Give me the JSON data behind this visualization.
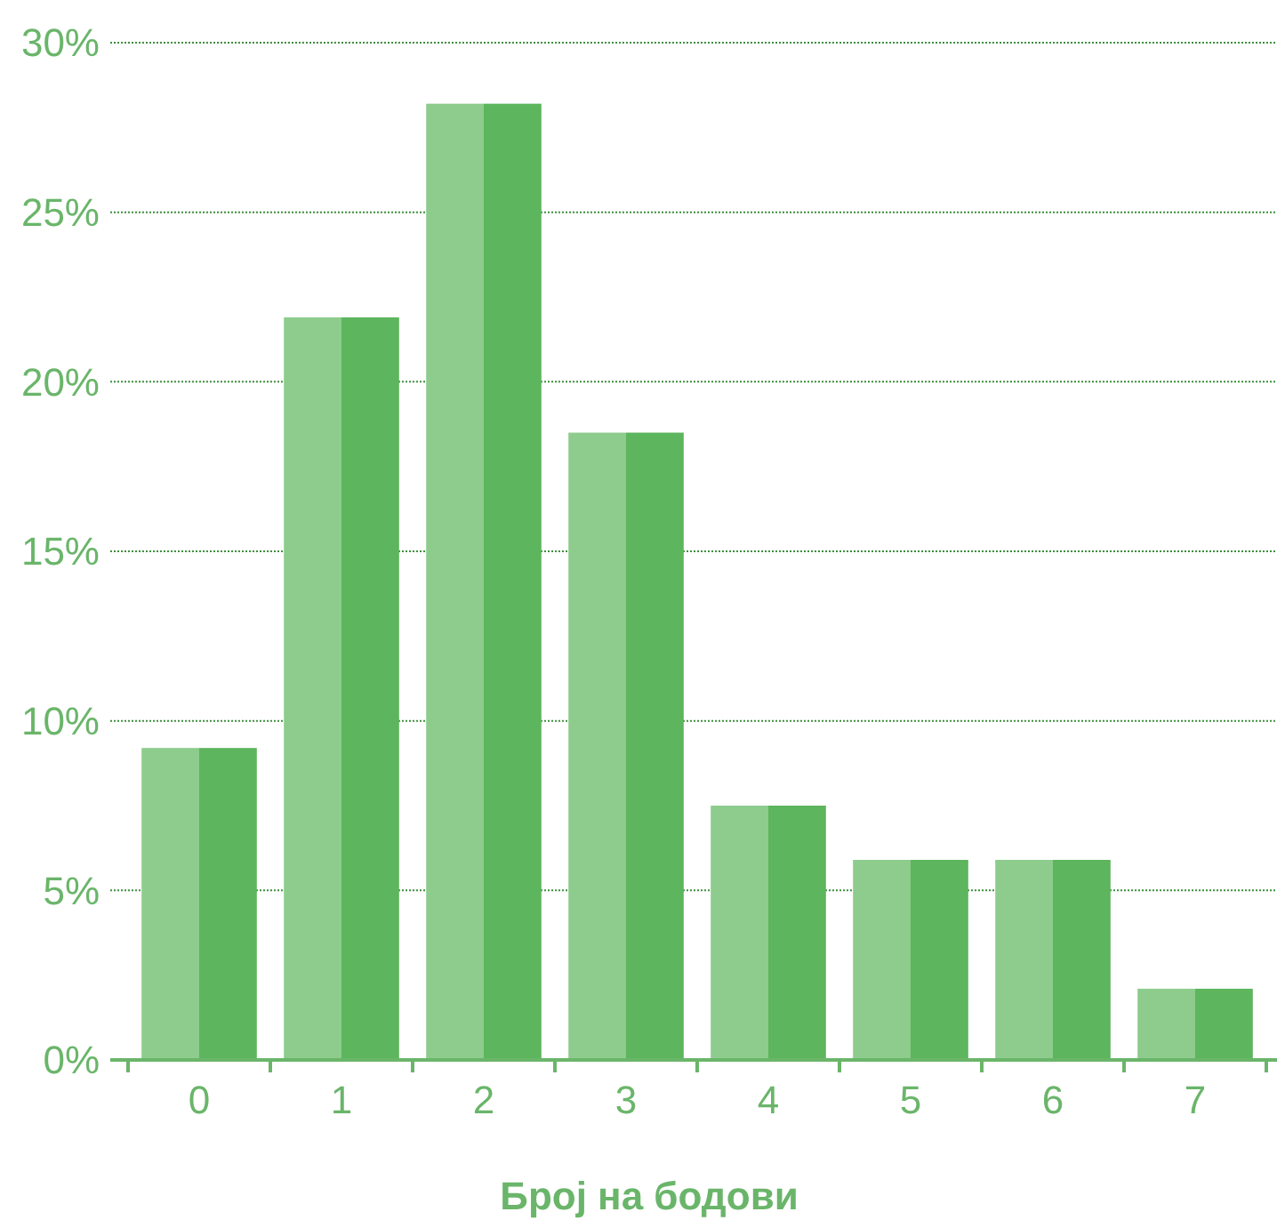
{
  "chart_data": {
    "type": "bar",
    "xlabel": "Број на бодови",
    "categories": [
      "0",
      "1",
      "2",
      "3",
      "4",
      "5",
      "6",
      "7"
    ],
    "series": [
      {
        "color": "#8dcc8d",
        "values": [
          9.2,
          21.9,
          28.2,
          18.5,
          7.5,
          5.9,
          5.9,
          2.1
        ]
      },
      {
        "color": "#5db55d",
        "values": [
          9.2,
          21.9,
          28.2,
          18.5,
          7.5,
          5.9,
          5.9,
          2.1
        ]
      }
    ],
    "ylim": [
      0,
      30
    ],
    "yticks": [
      {
        "value": 0,
        "label": "0%"
      },
      {
        "value": 5,
        "label": "5%"
      },
      {
        "value": 10,
        "label": "10%"
      },
      {
        "value": 15,
        "label": "15%"
      },
      {
        "value": 20,
        "label": "20%"
      },
      {
        "value": 25,
        "label": "25%"
      },
      {
        "value": 30,
        "label": "30%"
      }
    ],
    "grid": "y"
  }
}
